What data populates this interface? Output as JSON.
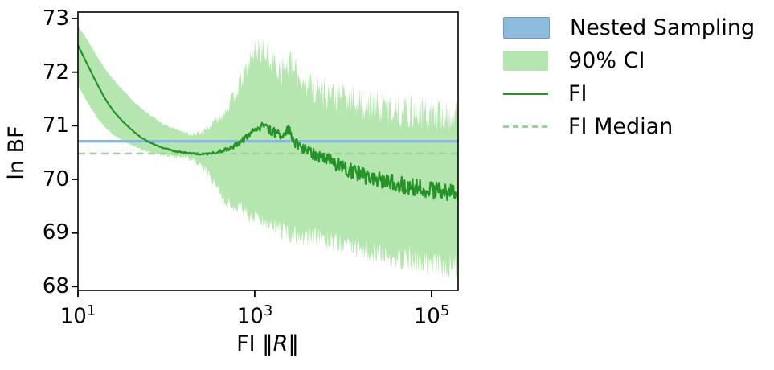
{
  "axes": {
    "y_label": "ln BF",
    "x_label_prefix": "FI ‖",
    "x_label_var": "R",
    "x_label_suffix": "‖",
    "y_ticks": [
      "73",
      "72",
      "71",
      "70",
      "69",
      "68"
    ],
    "x_ticks": [
      {
        "base": "10",
        "exp": "1"
      },
      {
        "base": "10",
        "exp": "3"
      },
      {
        "base": "10",
        "exp": "5"
      }
    ]
  },
  "legend": {
    "items": [
      {
        "label": "Nested Sampling",
        "swatch": "blue-patch"
      },
      {
        "label": "90% CI",
        "swatch": "green-patch"
      },
      {
        "label": "FI",
        "swatch": "solid-green-line"
      },
      {
        "label": "FI Median",
        "swatch": "dashed-green-line"
      }
    ]
  },
  "colors": {
    "background": "#ffffff",
    "axis": "#000000",
    "ns_band": "#87b7dc",
    "ns_legend_fill": "#8fbbdc",
    "ns_legend_edge": "#649ccc",
    "ci_fill": "#b6e6b0",
    "fi_line": "#259328",
    "fi_median": "#96d496"
  },
  "chart_data": {
    "type": "line",
    "title": "",
    "xlabel": "FI ‖R‖",
    "ylabel": "ln BF",
    "x_axis": {
      "scale": "log",
      "lim": [
        10,
        200000
      ],
      "ticks": [
        10,
        1000,
        100000
      ]
    },
    "y_axis": {
      "scale": "linear",
      "lim": [
        67.93,
        73.12
      ],
      "ticks": [
        73,
        72,
        71,
        70,
        69,
        68
      ]
    },
    "grid": false,
    "legend_position": "outside-right",
    "noise_seed": 12,
    "samples": 560,
    "series": [
      {
        "name": "Nested Sampling",
        "type": "hband",
        "value": 70.71,
        "halfwidth": 0.025,
        "color": "#87b7dc"
      },
      {
        "name": "90% CI",
        "type": "band",
        "color": "#b6e6b0",
        "upper": [
          [
            10,
            72.87
          ],
          [
            13,
            72.58
          ],
          [
            16,
            72.33
          ],
          [
            20,
            72.08
          ],
          [
            25,
            71.87
          ],
          [
            32,
            71.67
          ],
          [
            40,
            71.5
          ],
          [
            50,
            71.35
          ],
          [
            63,
            71.22
          ],
          [
            80,
            71.1
          ],
          [
            100,
            71.0
          ],
          [
            130,
            70.93
          ],
          [
            160,
            70.87
          ],
          [
            200,
            70.83
          ],
          [
            250,
            70.87
          ],
          [
            320,
            71.0
          ],
          [
            400,
            71.15
          ],
          [
            500,
            71.35
          ],
          [
            630,
            71.65
          ],
          [
            800,
            72.05
          ],
          [
            1000,
            72.4
          ],
          [
            1200,
            72.42
          ],
          [
            1500,
            72.25
          ],
          [
            2000,
            72.05
          ],
          [
            2500,
            72.15
          ],
          [
            3200,
            71.9
          ],
          [
            4000,
            71.8
          ],
          [
            5000,
            71.7
          ],
          [
            6300,
            71.62
          ],
          [
            8000,
            71.55
          ],
          [
            10000,
            71.5
          ],
          [
            13000,
            71.45
          ],
          [
            16000,
            71.42
          ],
          [
            20000,
            71.38
          ],
          [
            26000,
            71.35
          ],
          [
            32000,
            71.32
          ],
          [
            40000,
            71.3
          ],
          [
            50000,
            71.27
          ],
          [
            63000,
            71.25
          ],
          [
            80000,
            71.22
          ],
          [
            100000,
            71.2
          ],
          [
            130000,
            71.18
          ],
          [
            160000,
            71.17
          ],
          [
            200000,
            71.15
          ]
        ],
        "upper_noise": [
          [
            10,
            0.01
          ],
          [
            100,
            0.02
          ],
          [
            250,
            0.05
          ],
          [
            500,
            0.12
          ],
          [
            800,
            0.2
          ],
          [
            1200,
            0.28
          ],
          [
            2500,
            0.3
          ],
          [
            5000,
            0.32
          ],
          [
            10000,
            0.34
          ],
          [
            200000,
            0.35
          ]
        ],
        "lower": [
          [
            10,
            71.75
          ],
          [
            13,
            71.42
          ],
          [
            16,
            71.18
          ],
          [
            20,
            70.98
          ],
          [
            25,
            70.84
          ],
          [
            32,
            70.72
          ],
          [
            40,
            70.64
          ],
          [
            50,
            70.57
          ],
          [
            63,
            70.51
          ],
          [
            80,
            70.47
          ],
          [
            100,
            70.44
          ],
          [
            130,
            70.42
          ],
          [
            160,
            70.4
          ],
          [
            200,
            70.36
          ],
          [
            250,
            70.28
          ],
          [
            320,
            70.05
          ],
          [
            400,
            69.75
          ],
          [
            500,
            69.55
          ],
          [
            630,
            69.45
          ],
          [
            800,
            69.38
          ],
          [
            1000,
            69.3
          ],
          [
            1300,
            69.2
          ],
          [
            1600,
            69.12
          ],
          [
            2000,
            69.05
          ],
          [
            2600,
            68.98
          ],
          [
            3200,
            68.93
          ],
          [
            4000,
            68.97
          ],
          [
            5000,
            68.92
          ],
          [
            6300,
            68.87
          ],
          [
            8000,
            68.82
          ],
          [
            10000,
            68.77
          ],
          [
            13000,
            68.72
          ],
          [
            16000,
            68.69
          ],
          [
            20000,
            68.66
          ],
          [
            26000,
            68.62
          ],
          [
            32000,
            68.58
          ],
          [
            40000,
            68.55
          ],
          [
            50000,
            68.52
          ],
          [
            63000,
            68.49
          ],
          [
            80000,
            68.46
          ],
          [
            100000,
            68.43
          ],
          [
            130000,
            68.4
          ],
          [
            160000,
            68.38
          ],
          [
            200000,
            68.36
          ]
        ],
        "lower_noise": [
          [
            10,
            0.01
          ],
          [
            80,
            0.02
          ],
          [
            200,
            0.06
          ],
          [
            400,
            0.12
          ],
          [
            800,
            0.15
          ],
          [
            2000,
            0.18
          ],
          [
            5000,
            0.2
          ],
          [
            10000,
            0.22
          ],
          [
            50000,
            0.25
          ],
          [
            200000,
            0.27
          ]
        ]
      },
      {
        "name": "FI",
        "type": "line",
        "color": "#259328",
        "points": [
          [
            10,
            72.5
          ],
          [
            13,
            72.12
          ],
          [
            16,
            71.82
          ],
          [
            20,
            71.52
          ],
          [
            25,
            71.28
          ],
          [
            32,
            71.08
          ],
          [
            40,
            70.93
          ],
          [
            50,
            70.8
          ],
          [
            63,
            70.7
          ],
          [
            80,
            70.62
          ],
          [
            100,
            70.57
          ],
          [
            130,
            70.52
          ],
          [
            160,
            70.5
          ],
          [
            200,
            70.48
          ],
          [
            250,
            70.47
          ],
          [
            320,
            70.48
          ],
          [
            400,
            70.52
          ],
          [
            500,
            70.57
          ],
          [
            630,
            70.65
          ],
          [
            800,
            70.78
          ],
          [
            1000,
            70.92
          ],
          [
            1200,
            71.0
          ],
          [
            1400,
            70.94
          ],
          [
            1700,
            70.87
          ],
          [
            2000,
            70.82
          ],
          [
            2400,
            70.96
          ],
          [
            2700,
            70.75
          ],
          [
            3200,
            70.6
          ],
          [
            4000,
            70.52
          ],
          [
            5000,
            70.45
          ],
          [
            6300,
            70.38
          ],
          [
            8000,
            70.3
          ],
          [
            10000,
            70.22
          ],
          [
            13000,
            70.15
          ],
          [
            16000,
            70.08
          ],
          [
            20000,
            70.04
          ],
          [
            26000,
            70.0
          ],
          [
            32000,
            69.96
          ],
          [
            40000,
            69.92
          ],
          [
            50000,
            69.88
          ],
          [
            63000,
            69.85
          ],
          [
            80000,
            69.82
          ],
          [
            100000,
            69.8
          ],
          [
            130000,
            69.77
          ],
          [
            160000,
            69.76
          ],
          [
            200000,
            69.75
          ]
        ],
        "noise": [
          [
            10,
            0
          ],
          [
            100,
            0.01
          ],
          [
            300,
            0.02
          ],
          [
            600,
            0.05
          ],
          [
            1000,
            0.07
          ],
          [
            2000,
            0.09
          ],
          [
            4000,
            0.11
          ],
          [
            8000,
            0.13
          ],
          [
            16000,
            0.15
          ],
          [
            40000,
            0.16
          ],
          [
            200000,
            0.16
          ]
        ]
      },
      {
        "name": "FI Median",
        "type": "hline",
        "value": 70.48,
        "style": "dashed",
        "color": "#96d496"
      }
    ]
  }
}
